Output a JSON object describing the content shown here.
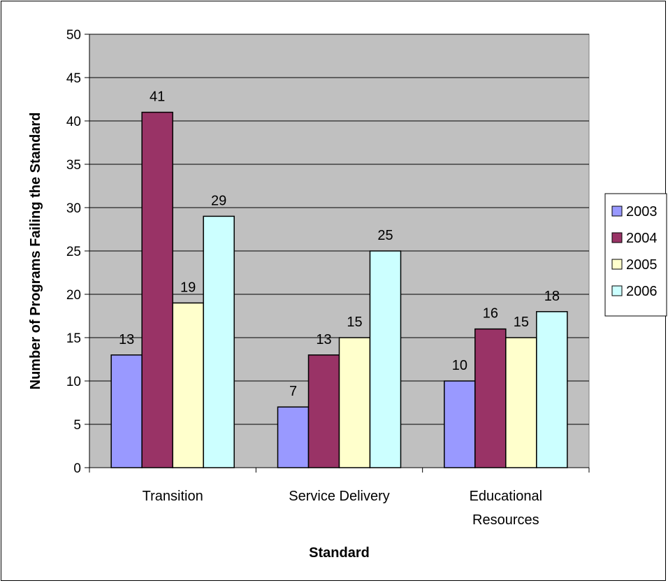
{
  "chart_data": {
    "type": "bar",
    "title": "",
    "xlabel": "Standard",
    "ylabel": "Number of Programs Failing the Standard",
    "ylim": [
      0,
      50
    ],
    "ytick_step": 5,
    "grid": true,
    "legend_position": "right",
    "categories": [
      "Transition",
      "Service Delivery",
      "Educational Resources"
    ],
    "category_label_lines": [
      [
        "Transition"
      ],
      [
        "Service Delivery"
      ],
      [
        "Educational",
        "Resources"
      ]
    ],
    "series": [
      {
        "name": "2003",
        "color": "#9999ff",
        "values": [
          13,
          7,
          10
        ]
      },
      {
        "name": "2004",
        "color": "#993366",
        "values": [
          41,
          13,
          16
        ]
      },
      {
        "name": "2005",
        "color": "#ffffcc",
        "values": [
          19,
          15,
          15
        ]
      },
      {
        "name": "2006",
        "color": "#ccffff",
        "values": [
          29,
          25,
          18
        ]
      }
    ],
    "plot_background": "#c0c0c0"
  }
}
